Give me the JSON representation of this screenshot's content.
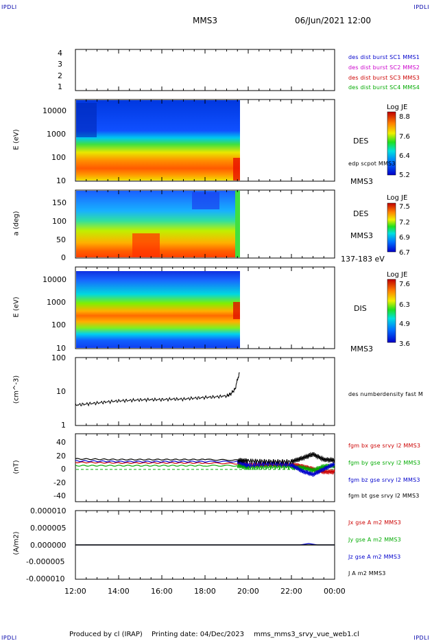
{
  "header": {
    "corner_tl": "IPDLI",
    "corner_tr": "IPDLI",
    "corner_bl": "IPDLI",
    "corner_br": "IPDLI",
    "mission": "MMS3",
    "datetime": "06/Jun/2021 12:00"
  },
  "footer": {
    "produced": "Produced by cl (IRAP)",
    "printing": "Printing date: 04/Dec/2023",
    "file": "mms_mms3_srvy_vue_web1.cl"
  },
  "x_axis": {
    "ticks": [
      "12:00",
      "14:00",
      "16:00",
      "18:00",
      "20:00",
      "22:00",
      "00:00"
    ],
    "range_hours": [
      12,
      24
    ]
  },
  "panels": {
    "p1": {
      "ticks": [
        "4",
        "3",
        "2",
        "1"
      ],
      "legend": [
        {
          "text": "des dist burst SC1 MMS1",
          "color": "#0000cc"
        },
        {
          "text": "des dist burst SC2 MMS2",
          "color": "#cc00cc"
        },
        {
          "text": "des dist burst SC3 MMS3",
          "color": "#cc0000"
        },
        {
          "text": "des dist burst SC4 MMS4",
          "color": "#00aa00"
        }
      ]
    },
    "p2": {
      "ylabel": "E (eV)",
      "ticks": [
        "10000",
        "1000",
        "100",
        "10"
      ],
      "side1": "DES",
      "side2": "edp scpot MMS3",
      "side3": "MMS3",
      "cb_title": "Log JE",
      "cb_ticks": [
        "8.8",
        "7.6",
        "6.4",
        "5.2"
      ]
    },
    "p3": {
      "ylabel": "a (deg)",
      "ticks": [
        "150",
        "100",
        "50",
        "0"
      ],
      "side1": "DES",
      "side2": "MMS3",
      "side3": "137-183 eV",
      "cb_title": "Log JE",
      "cb_ticks": [
        "7.5",
        "7.2",
        "6.9",
        "6.7"
      ]
    },
    "p4": {
      "ylabel": "E (eV)",
      "ticks": [
        "10000",
        "1000",
        "100",
        "10"
      ],
      "side1": "DIS",
      "side3": "MMS3",
      "cb_title": "Log JE",
      "cb_ticks": [
        "7.6",
        "6.3",
        "4.9",
        "3.6"
      ]
    },
    "p5": {
      "ylabel": "(cm^-3)",
      "ticks": [
        "100",
        "10",
        "1"
      ],
      "legend": "des numberdensity fast M"
    },
    "p6": {
      "ylabel": "(nT)",
      "ticks": [
        "40",
        "20",
        "0",
        "-20",
        "-40"
      ],
      "legend": [
        {
          "text": "fgm bx gse srvy l2 MMS3",
          "color": "#cc0000"
        },
        {
          "text": "fgm by gse srvy l2 MMS3",
          "color": "#00aa00"
        },
        {
          "text": "fgm bz gse srvy l2 MMS3",
          "color": "#0000cc"
        },
        {
          "text": "fgm bt gse srvy l2 MMS3",
          "color": "#000000"
        }
      ]
    },
    "p7": {
      "ylabel": "(A/m2)",
      "ticks": [
        "0.000010",
        "0.000005",
        "0.000000",
        "-0.000005",
        "-0.000010"
      ],
      "legend": [
        {
          "text": "Jx gse A m2 MMS3",
          "color": "#cc0000"
        },
        {
          "text": "Jy gse A m2 MMS3",
          "color": "#00aa00"
        },
        {
          "text": "Jz gse A m2 MMS3",
          "color": "#0000cc"
        },
        {
          "text": "J A m2 MMS3",
          "color": "#000000"
        }
      ]
    }
  },
  "chart_data": [
    {
      "type": "line",
      "title": "",
      "ylabel": "",
      "ylim": [
        0.5,
        4.5
      ],
      "series": []
    },
    {
      "type": "heatmap",
      "ylabel": "E (eV)",
      "y_scale": "log",
      "ylim": [
        10,
        30000
      ],
      "data_end_hour": 19.6,
      "colorbar": {
        "title": "Log JE",
        "range": [
          5.2,
          8.8
        ]
      }
    },
    {
      "type": "heatmap",
      "ylabel": "a (deg)",
      "ylim": [
        0,
        180
      ],
      "data_end_hour": 19.6,
      "colorbar": {
        "title": "Log JE",
        "range": [
          6.7,
          7.5
        ]
      }
    },
    {
      "type": "heatmap",
      "ylabel": "E (eV)",
      "y_scale": "log",
      "ylim": [
        10,
        30000
      ],
      "data_end_hour": 19.6,
      "colorbar": {
        "title": "Log JE",
        "range": [
          3.6,
          7.6
        ]
      }
    },
    {
      "type": "line",
      "ylabel": "(cm^-3)",
      "y_scale": "log",
      "ylim": [
        1,
        100
      ],
      "series": [
        {
          "name": "des numberdensity fast M",
          "x": [
            12.0,
            12.5,
            13.0,
            13.5,
            14.0,
            14.5,
            15.0,
            15.5,
            16.0,
            16.5,
            17.0,
            17.5,
            18.0,
            18.5,
            19.0,
            19.2,
            19.4,
            19.5,
            19.6
          ],
          "y": [
            4.0,
            4.3,
            4.6,
            5.0,
            5.3,
            5.5,
            5.7,
            5.8,
            5.8,
            6.0,
            6.0,
            6.4,
            6.7,
            7.0,
            7.5,
            8.5,
            12,
            22,
            35
          ]
        }
      ]
    },
    {
      "type": "line",
      "ylabel": "(nT)",
      "ylim": [
        -50,
        50
      ],
      "series": [
        {
          "name": "fgm bx gse srvy l2 MMS3",
          "x": [
            12,
            14,
            16,
            18,
            19.5,
            20,
            21,
            22,
            22.5,
            23,
            23.5,
            24
          ],
          "y": [
            8,
            7,
            7,
            7,
            6,
            5,
            5,
            5,
            2,
            -2,
            -6,
            -6
          ]
        },
        {
          "name": "fgm by gse srvy l2 MMS3",
          "x": [
            12,
            14,
            16,
            18,
            19.5,
            20,
            21,
            22,
            22.5,
            23,
            23.5,
            24
          ],
          "y": [
            3,
            3,
            3,
            3,
            3,
            0,
            1,
            1,
            0,
            -4,
            2,
            3
          ]
        },
        {
          "name": "fgm bz gse srvy l2 MMS3",
          "x": [
            12,
            14,
            16,
            18,
            19.5,
            20,
            21,
            22,
            22.5,
            23,
            23.5,
            24
          ],
          "y": [
            10,
            9,
            9,
            9,
            9,
            3,
            6,
            4,
            -5,
            -10,
            -2,
            6
          ]
        },
        {
          "name": "fgm bt gse srvy l2 MMS3",
          "x": [
            12,
            14,
            16,
            18,
            19.5,
            20,
            21,
            22,
            22.5,
            23,
            23.5,
            24
          ],
          "y": [
            13,
            12,
            12,
            12,
            11,
            10,
            9,
            9,
            14,
            20,
            12,
            11
          ]
        }
      ]
    },
    {
      "type": "line",
      "ylabel": "(A/m2)",
      "ylim": [
        -1e-05,
        1e-05
      ],
      "series": [
        {
          "name": "Jx gse A m2 MMS3",
          "x": [
            12,
            24
          ],
          "y": [
            0,
            0
          ]
        },
        {
          "name": "Jy gse A m2 MMS3",
          "x": [
            12,
            24
          ],
          "y": [
            0,
            0
          ]
        },
        {
          "name": "Jz gse A m2 MMS3",
          "x": [
            12,
            22.4,
            22.8,
            23.2,
            24
          ],
          "y": [
            0,
            0,
            4e-07,
            0,
            0
          ]
        },
        {
          "name": "J A m2 MMS3",
          "x": [
            12,
            24
          ],
          "y": [
            0,
            0
          ]
        }
      ]
    }
  ]
}
